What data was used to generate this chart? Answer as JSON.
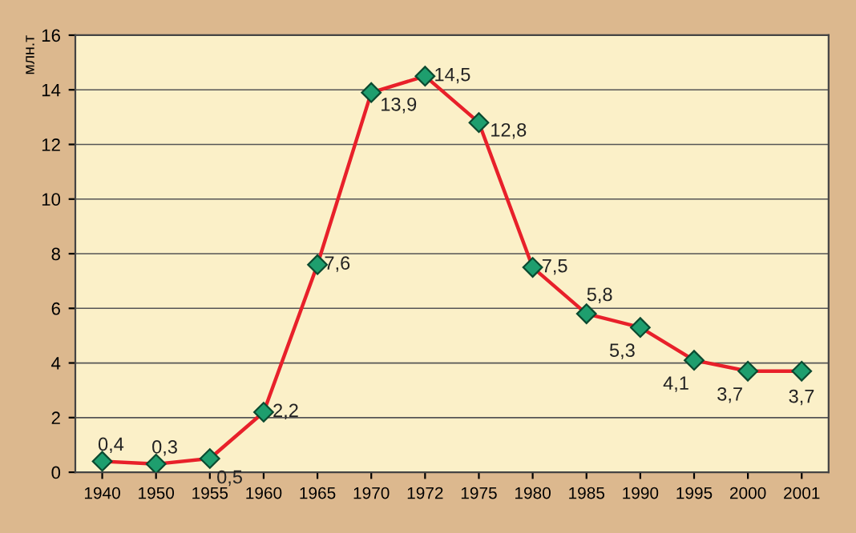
{
  "chart_data": {
    "type": "line",
    "ylabel": "млн.т",
    "categories": [
      "1940",
      "1950",
      "1955",
      "1960",
      "1965",
      "1970",
      "1972",
      "1975",
      "1980",
      "1985",
      "1990",
      "1995",
      "2000",
      "2001"
    ],
    "series": [
      {
        "color": "#e8202a",
        "values": [
          0.4,
          0.3,
          0.5,
          2.2,
          7.6,
          13.9,
          14.5,
          12.8,
          7.5,
          5.8,
          5.3,
          4.1,
          3.7,
          3.7
        ],
        "value_labels": [
          "0,4",
          "0,3",
          "0,5",
          "2,2",
          "7,6",
          "13,9",
          "14,5",
          "12,8",
          "7,5",
          "5,8",
          "5,3",
          "4,1",
          "3,7",
          "3,7"
        ]
      }
    ],
    "marker": "diamond",
    "line_style": "solid",
    "ylim": [
      0,
      16
    ],
    "yticks": [
      0,
      2,
      4,
      6,
      8,
      10,
      12,
      14,
      16
    ],
    "grid": "y",
    "legend": false
  }
}
